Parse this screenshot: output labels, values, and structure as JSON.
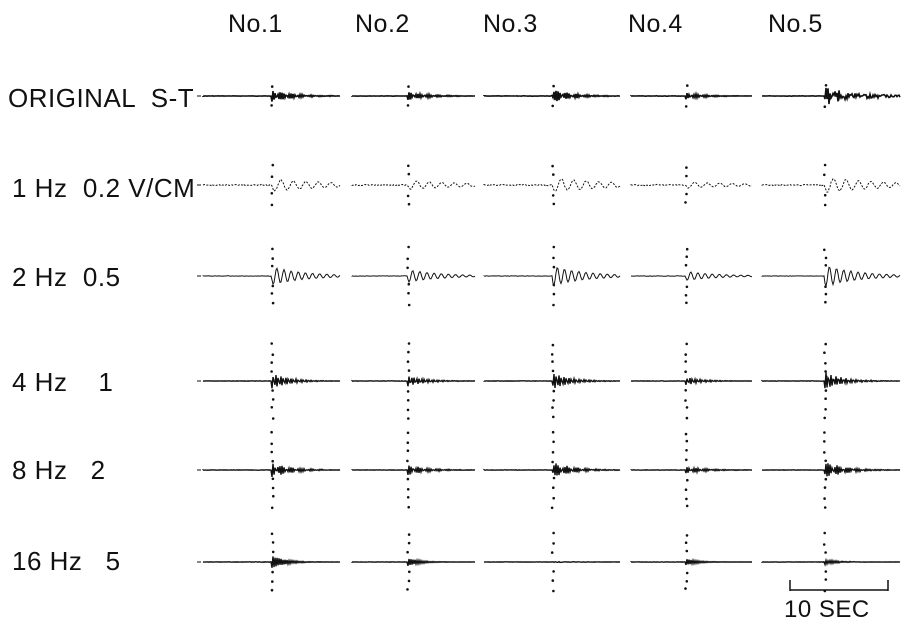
{
  "columns": [
    "No.1",
    "No.2",
    "No.3",
    "No.4",
    "No.5"
  ],
  "rows": [
    {
      "label": "ORIGINAL  S-T",
      "filter": "original"
    },
    {
      "label": "1 Hz  0.2 V/CM",
      "filter": "1hz"
    },
    {
      "label": "2 Hz  0.5",
      "filter": "2hz"
    },
    {
      "label": "4 Hz    1",
      "filter": "4hz"
    },
    {
      "label": "8 Hz   2",
      "filter": "8hz"
    },
    {
      "label": "16 Hz   5",
      "filter": "16hz"
    }
  ],
  "scale_bar": {
    "label": "10 SEC"
  },
  "colors": {
    "ink": "#111111",
    "background": "#ffffff"
  }
}
